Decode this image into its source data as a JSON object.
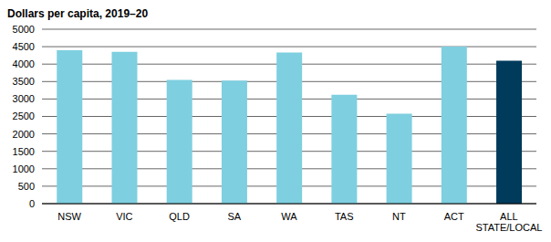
{
  "chart_data": {
    "type": "bar",
    "title": "Dollars per capita, 2019–20",
    "categories": [
      "NSW",
      "VIC",
      "QLD",
      "SA",
      "WA",
      "TAS",
      "NT",
      "ACT",
      "ALL STATE/LOCAL"
    ],
    "values": [
      4400,
      4350,
      3550,
      3530,
      4330,
      3120,
      2580,
      4500,
      4100
    ],
    "colors": [
      "#7ecfe0",
      "#7ecfe0",
      "#7ecfe0",
      "#7ecfe0",
      "#7ecfe0",
      "#7ecfe0",
      "#7ecfe0",
      "#7ecfe0",
      "#003b5c"
    ],
    "ylim": [
      0,
      5000
    ],
    "yticks": [
      0,
      500,
      1000,
      1500,
      2000,
      2500,
      3000,
      3500,
      4000,
      4500,
      5000
    ],
    "grid": true
  }
}
